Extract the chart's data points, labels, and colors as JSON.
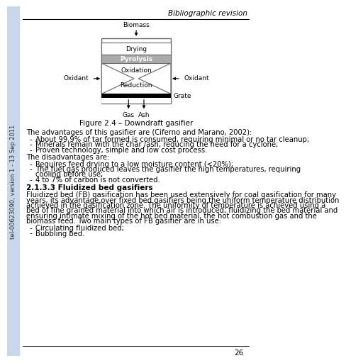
{
  "header_text": "Bibliographic revision",
  "figure_caption": "Figure 2.4 – Downdraft gasifier",
  "diagram": {
    "biomass_label": "Biomass",
    "box_labels": [
      "Drying",
      "Pyrolysis",
      "Oxidation",
      "Reduction"
    ],
    "oxidant_left": "Oxidant",
    "oxidant_right": "Oxidant",
    "grate_label": "Grate",
    "gas_label": "Gas",
    "ash_label": "Ash"
  },
  "advantages_intro": "The advantages of this gasifier are (Ciferno and Marano, 2002):",
  "advantages": [
    "About 99,9% of tar formed is consumed, requiring minimal or no tar cleanup;",
    "Minerals remain with the char /ash, reducing the need for a cyclone;",
    "Proven technology, simple and low cost process."
  ],
  "disadvantages_intro": "The disadvantages are:",
  "disadvantages_line1": "Requires feed drying to a low moisture content (<20%);",
  "disadvantages_line2a": "The fuel gas produced leaves the gasifier the high temperatures, requiring",
  "disadvantages_line2b": "cooling before use;",
  "disadvantages_line3": "4 to 7% of carbon is not converted.",
  "section_heading": "2.1.3.3 Fluidized bed gasifiers",
  "paragraph_lines": [
    "Fluidized bed (FB) gasification has been used extensively for coal gasification for many",
    "years, its advantage over fixed bed gasifiers being the uniform temperature distribution",
    "achieved in the gasification zone. The uniformity of temperature is achieved using a",
    "bed of fine grained material into which air is introduced, fluidizing the bed material and",
    "ensuring intimate mixing of the hot bed material, the hot combustion gas and the",
    "biomass feed. Two main types of FB gasifier are in use:"
  ],
  "fb_types": [
    "Circulating fluidized bed;",
    "Bubbling bed."
  ],
  "page_number": "26",
  "sidebar_text": "tel-00623090, version 1 - 13 Sep 2011",
  "colors": {
    "header_line": "#000000",
    "box_border": "#666666",
    "pyrolysis_fill": "#aaaaaa",
    "drying_fill": "#ffffff",
    "bottom_fill": "#000000",
    "text": "#000000",
    "background": "#ffffff",
    "sidebar_bg": "#c8d8e8"
  },
  "font_sizes": {
    "header": 7.5,
    "body": 7.2,
    "section_bold": 7.5,
    "diagram_label": 6.5,
    "caption": 7.5,
    "page_number": 7.5,
    "sidebar": 6.0
  }
}
